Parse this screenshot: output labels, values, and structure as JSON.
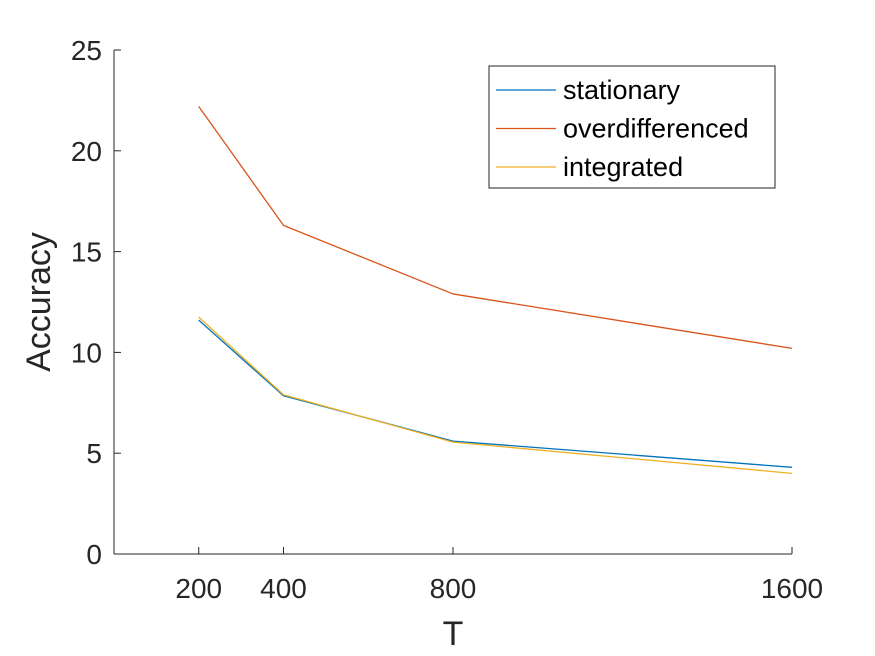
{
  "chart_data": {
    "type": "line",
    "title": "",
    "xlabel": "T",
    "ylabel": "Accuracy",
    "x": [
      200,
      400,
      800,
      1600
    ],
    "x_ticks": [
      200,
      400,
      800,
      1600
    ],
    "x_tick_labels": [
      "200",
      "400",
      "800",
      "1600"
    ],
    "xlim": [
      0,
      1600
    ],
    "y_ticks": [
      0,
      5,
      10,
      15,
      20,
      25
    ],
    "y_tick_labels": [
      "0",
      "5",
      "10",
      "15",
      "20",
      "25"
    ],
    "ylim": [
      0,
      25
    ],
    "grid": false,
    "legend_position": "top-right",
    "series": [
      {
        "name": "stationary",
        "color": "#0072BD",
        "values": [
          11.6,
          7.85,
          5.6,
          4.3
        ]
      },
      {
        "name": "overdifferenced",
        "color": "#D95319",
        "values": [
          22.2,
          16.3,
          12.9,
          10.2
        ]
      },
      {
        "name": "integrated",
        "color": "#EDB120",
        "values": [
          11.75,
          7.9,
          5.55,
          4.0
        ]
      }
    ]
  }
}
